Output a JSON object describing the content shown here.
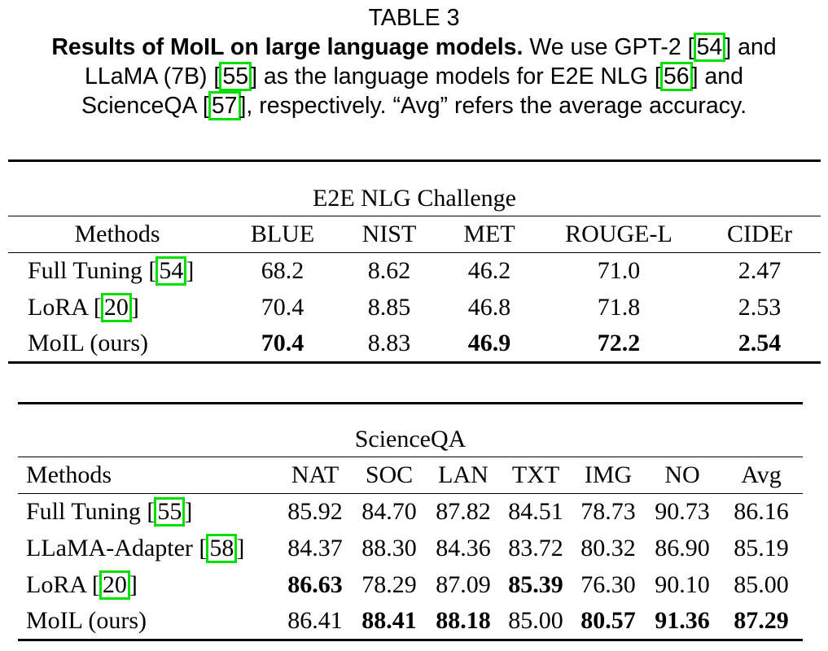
{
  "caption": {
    "table_label": "TABLE 3",
    "bold_title": "Results of MoIL on large language models.",
    "text_1": " We use GPT-2 [",
    "ref_54": "54",
    "text_2": "] and",
    "text_3": "LLaMA (7B) [",
    "ref_55": "55",
    "text_4": "] as the language models for E2E NLG [",
    "ref_56": "56",
    "text_5": "] and",
    "text_6": "ScienceQA [",
    "ref_57": "57",
    "text_7": "], respectively. “Avg” refers the average accuracy."
  },
  "table1": {
    "title": "E2E NLG Challenge",
    "headers": [
      "Methods",
      "BLUE",
      "NIST",
      "MET",
      "ROUGE-L",
      "CIDEr"
    ],
    "rows": [
      {
        "method": "Full Tuning [",
        "ref": "54",
        "close": "]",
        "values": [
          "68.2",
          "8.62",
          "46.2",
          "71.0",
          "2.47"
        ]
      },
      {
        "method": "LoRA [",
        "ref": "20",
        "close": "]",
        "values": [
          "70.4",
          "8.85",
          "46.8",
          "71.8",
          "2.53"
        ]
      },
      {
        "method": "MoIL (ours)",
        "values": [
          "70.4",
          "8.83",
          "46.9",
          "72.2",
          "2.54"
        ]
      }
    ]
  },
  "table2": {
    "title": "ScienceQA",
    "headers": [
      "Methods",
      "NAT",
      "SOC",
      "LAN",
      "TXT",
      "IMG",
      "NO",
      "Avg"
    ],
    "rows": [
      {
        "method": "Full Tuning [",
        "ref": "55",
        "close": "]",
        "values": [
          "85.92",
          "84.70",
          "87.82",
          "84.51",
          "78.73",
          "90.73",
          "86.16"
        ]
      },
      {
        "method": "LLaMA-Adapter [",
        "ref": "58",
        "close": "]",
        "values": [
          "84.37",
          "88.30",
          "84.36",
          "83.72",
          "80.32",
          "86.90",
          "85.19"
        ]
      },
      {
        "method": "LoRA [",
        "ref": "20",
        "close": "]",
        "values": [
          "86.63",
          "78.29",
          "87.09",
          "85.39",
          "76.30",
          "90.10",
          "85.00"
        ]
      },
      {
        "method": "MoIL (ours)",
        "values": [
          "86.41",
          "88.41",
          "88.18",
          "85.00",
          "80.57",
          "91.36",
          "87.29"
        ]
      }
    ]
  },
  "colors": {
    "ref_box": "#00e000",
    "text": "#000000"
  }
}
